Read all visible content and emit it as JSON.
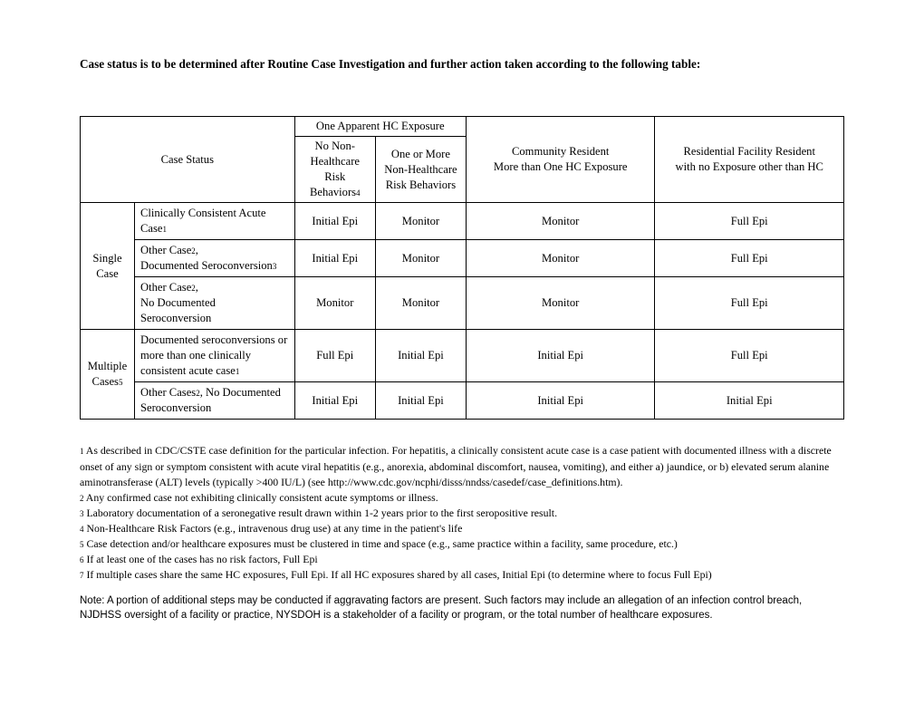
{
  "intro": "Case status is to be determined after Routine Case Investigation and further action taken according to the following table:",
  "table": {
    "case_status_label": "Case Status",
    "hc1_top": "One Apparent HC Exposure",
    "hc2_top": "Community Resident",
    "hc2_sub": "More than One HC Exposure",
    "hc3_top": "Residential Facility Resident",
    "hc3_sub": "with no Exposure other than HC",
    "sub_a": "No Non-Healthcare Risk Behaviors",
    "sub_b": "One or More Non-Healthcare Risk Behaviors",
    "sub_a_fn": "4",
    "group1": "Single Case",
    "group2": "Multiple Cases",
    "group2_fn": "5",
    "r1_desc": "Clinically Consistent Acute Case",
    "r1_fn": "1",
    "r2_desc_a": "Other Case",
    "r2_fn_a": "2",
    "r2_desc_b": "Documented Seroconversion",
    "r2_fn_b": "3",
    "r3_desc_a": "Other Case",
    "r3_fn_a": "2",
    "r3_desc_b": "No Documented Seroconversion",
    "r4_desc": "Documented seroconversions or more than one clinically consistent acute case",
    "r4_fn": "1",
    "r5_desc_a": "Other Cases",
    "r5_fn_a": "2",
    "r5_desc_b": ", No Documented Seroconversion",
    "v_initial": "Initial Epi",
    "v_monitor": "Monitor",
    "v_full": "Full Epi"
  },
  "footnotes": {
    "f1n": "1",
    "f1": " As described in CDC/CSTE case definition for the particular infection. For hepatitis, a clinically consistent acute case is a case patient with documented illness with a discrete onset of any sign or symptom consistent with acute viral hepatitis (e.g., anorexia, abdominal discomfort, nausea, vomiting), and either a) jaundice, or b) elevated serum alanine aminotransferase (ALT) levels (typically >400 IU/L) (see http://www.cdc.gov/ncphi/disss/nndss/casedef/case_definitions.htm).",
    "f2n": "2",
    "f2": " Any confirmed case not exhibiting clinically consistent acute symptoms or illness.",
    "f3n": "3",
    "f3": " Laboratory documentation of a seronegative result drawn within 1-2 years prior to the first seropositive result.",
    "f4n": "4",
    "f4": " Non-Healthcare Risk Factors (e.g., intravenous drug use) at any time in the patient's life",
    "f5n": "5",
    "f5": " Case detection and/or healthcare exposures must be clustered in time and space (e.g., same practice within a facility, same procedure, etc.)",
    "f6n": "6",
    "f6": " If at least one of the cases has no risk factors, Full Epi",
    "f7n": "7",
    "f7": " If multiple cases share the same HC exposures, Full Epi. If all HC exposures shared by all cases, Initial Epi (to determine where to focus Full Epi)"
  },
  "note": "Note: A portion of additional steps may be conducted if aggravating factors are present. Such factors may include an allegation of an infection control breach, NJDHSS oversight of a facility or practice, NYSDOH is a stakeholder of a facility or program, or the total number of healthcare exposures."
}
